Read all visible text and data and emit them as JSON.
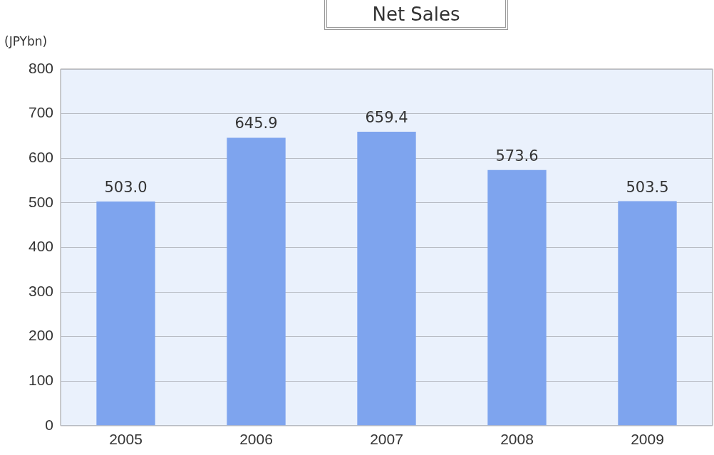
{
  "chart_data": {
    "type": "bar",
    "title": "Net Sales",
    "ylabel": "(JPYbn)",
    "categories": [
      "2005",
      "2006",
      "2007",
      "2008",
      "2009"
    ],
    "values": [
      503.0,
      645.9,
      659.4,
      573.6,
      503.5
    ],
    "value_labels": [
      "503.0",
      "645.9",
      "659.4",
      "573.6",
      "503.5"
    ],
    "color": "#7ea4ee",
    "ylim": [
      0,
      800
    ],
    "yticks": [
      0,
      100,
      200,
      300,
      400,
      500,
      600,
      700,
      800
    ],
    "grid": "y",
    "legend": false
  }
}
